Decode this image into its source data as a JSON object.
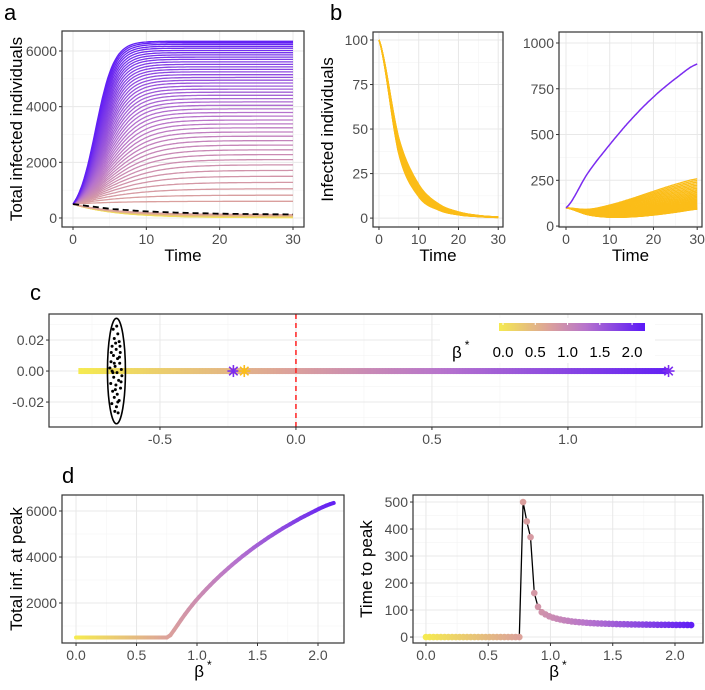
{
  "panel_labels": {
    "a": "a",
    "b": "b",
    "c": "c",
    "d": "d"
  },
  "colors": {
    "beta_scale": [
      [
        "0",
        "#f5ea50"
      ],
      [
        "0.75",
        "#dca29a"
      ],
      [
        "1.3",
        "#b774cc"
      ],
      [
        "2.2",
        "#5a18f8"
      ]
    ],
    "orange": "#fbbd18",
    "purple": "#7b2cf0",
    "dashed": "#000000",
    "vline": "#ff2020"
  },
  "beta_star": [
    0,
    0.03,
    0.06,
    0.09,
    0.12,
    0.15,
    0.18,
    0.21,
    0.24,
    0.27,
    0.3,
    0.33,
    0.36,
    0.39,
    0.42,
    0.45,
    0.48,
    0.51,
    0.54,
    0.57,
    0.6,
    0.63,
    0.66,
    0.69,
    0.72,
    0.75,
    0.78,
    0.81,
    0.84,
    0.87,
    0.9,
    0.93,
    0.96,
    0.99,
    1.02,
    1.05,
    1.08,
    1.11,
    1.14,
    1.17,
    1.2,
    1.23,
    1.26,
    1.29,
    1.32,
    1.35,
    1.38,
    1.41,
    1.44,
    1.47,
    1.5,
    1.53,
    1.56,
    1.59,
    1.62,
    1.65,
    1.68,
    1.71,
    1.74,
    1.77,
    1.8,
    1.83,
    1.86,
    1.89,
    1.92,
    1.95,
    1.98,
    2.01,
    2.04,
    2.07,
    2.1,
    2.13
  ],
  "chart_data": [
    {
      "id": "a",
      "type": "line",
      "xlabel": "Time",
      "ylabel": "Total infected individuals",
      "xlim": [
        -1.5,
        31.5
      ],
      "ylim": [
        -324,
        6719
      ],
      "xticks": [
        0,
        10,
        20,
        30
      ],
      "xtick_labels": [
        "0",
        "10",
        "20",
        "30"
      ],
      "yticks": [
        0,
        2000,
        4000,
        6000
      ],
      "ytick_labels": [
        "0",
        "2000",
        "4000",
        "6000"
      ],
      "initial_value": 500,
      "series_note": "one curve per beta_star, plateau = Total inf. at peak (panel d)",
      "dashed_curve": {
        "t": [
          0,
          5,
          10,
          15,
          20,
          25,
          30
        ],
        "values": [
          500,
          330,
          235,
          185,
          155,
          138,
          128
        ]
      }
    },
    {
      "id": "b-left",
      "type": "line",
      "xlabel": "Time",
      "ylabel": "Infected individuals",
      "xlim": [
        -1.5,
        31.2
      ],
      "ylim": [
        -5,
        104.5
      ],
      "xticks": [
        0,
        10,
        20,
        30
      ],
      "xtick_labels": [
        "0",
        "10",
        "20",
        "30"
      ],
      "yticks": [
        0,
        25,
        50,
        75,
        100
      ],
      "ytick_labels": [
        "0",
        "25",
        "50",
        "75",
        "100"
      ],
      "t": [
        0,
        5,
        10,
        15,
        20,
        25,
        30
      ],
      "band_upper": [
        100,
        45,
        19,
        8,
        3.5,
        1.5,
        0.7
      ],
      "band_lower": [
        100,
        36,
        12,
        4.5,
        1.8,
        0.8,
        0.3
      ],
      "n_curves": 30
    },
    {
      "id": "b-right",
      "type": "line",
      "xlabel": "Time",
      "xlim": [
        -1.6,
        31.1
      ],
      "ylim": [
        -5,
        1060
      ],
      "xticks": [
        0,
        10,
        20,
        30
      ],
      "xtick_labels": [
        "0",
        "10",
        "20",
        "30"
      ],
      "yticks": [
        0,
        250,
        500,
        750,
        1000
      ],
      "ytick_labels": [
        "0",
        "250",
        "500",
        "750",
        "1000"
      ],
      "t": [
        0,
        5,
        10,
        15,
        20,
        25,
        30
      ],
      "purple_curve": [
        100,
        290,
        445,
        585,
        705,
        805,
        885
      ],
      "band_upper": [
        100,
        92,
        115,
        150,
        190,
        228,
        258
      ],
      "band_lower": [
        100,
        62,
        48,
        50,
        60,
        75,
        92
      ],
      "n_curves": 30
    },
    {
      "id": "c",
      "type": "scatter",
      "xlim": [
        -0.908,
        1.493
      ],
      "ylim": [
        -0.0361,
        0.0368
      ],
      "xticks": [
        -0.5,
        0,
        0.5,
        1.0
      ],
      "xtick_labels": [
        "-0.5",
        "0.0",
        "0.5",
        "1.0"
      ],
      "yticks": [
        -0.02,
        0,
        0.02
      ],
      "ytick_labels": [
        "-0.02",
        "0.00",
        "0.02"
      ],
      "line_x_range": [
        -0.8,
        1.37
      ],
      "vline_x": 0,
      "ellipse": {
        "cx": -0.66,
        "cy": 0,
        "rx": 0.033,
        "ry": 0.034
      },
      "stars": [
        {
          "x": -0.23,
          "y": 0,
          "color": "purple"
        },
        {
          "x": -0.19,
          "y": 0,
          "color": "orange"
        },
        {
          "x": 1.37,
          "y": 0,
          "color": "purple"
        }
      ],
      "points": [
        [
          -0.672,
          0.027
        ],
        [
          -0.655,
          0.024
        ],
        [
          -0.668,
          0.021
        ],
        [
          -0.65,
          0.019
        ],
        [
          -0.676,
          0.016
        ],
        [
          -0.661,
          0.014
        ],
        [
          -0.646,
          0.012
        ],
        [
          -0.671,
          0.01
        ],
        [
          -0.656,
          0.008
        ],
        [
          -0.68,
          0.006
        ],
        [
          -0.648,
          0.005
        ],
        [
          -0.665,
          0.003
        ],
        [
          -0.642,
          0.001
        ],
        [
          -0.676,
          0.0
        ],
        [
          -0.658,
          -0.001
        ],
        [
          -0.64,
          -0.003
        ],
        [
          -0.67,
          -0.004
        ],
        [
          -0.652,
          -0.006
        ],
        [
          -0.681,
          -0.008
        ],
        [
          -0.662,
          -0.009
        ],
        [
          -0.645,
          -0.011
        ],
        [
          -0.674,
          -0.013
        ],
        [
          -0.657,
          -0.015
        ],
        [
          -0.668,
          -0.017
        ],
        [
          -0.65,
          -0.019
        ],
        [
          -0.677,
          -0.021
        ],
        [
          -0.66,
          -0.023
        ],
        [
          -0.666,
          -0.026
        ],
        [
          -0.654,
          -0.027
        ],
        [
          -0.663,
          0.018
        ],
        [
          -0.673,
          -0.001
        ],
        [
          -0.649,
          0.009
        ],
        [
          -0.684,
          0.002
        ],
        [
          -0.643,
          -0.007
        ],
        [
          -0.659,
          0.029
        ],
        [
          -0.668,
          0.005
        ],
        [
          -0.655,
          -0.02
        ],
        [
          -0.679,
          0.012
        ],
        [
          -0.647,
          0.016
        ],
        [
          -0.664,
          -0.012
        ]
      ],
      "legend": {
        "title": "β",
        "title_sup": "*",
        "position": "top-right",
        "range": [
          0,
          2.2
        ],
        "ticks": [
          0,
          0.5,
          1.0,
          1.5,
          2.0
        ],
        "tick_labels": [
          "0.0",
          "0.5",
          "1.0",
          "1.5",
          "2.0"
        ]
      }
    },
    {
      "id": "d-left",
      "type": "line",
      "xlabel": "β",
      "xlabel_sup": "*",
      "ylabel": "Total inf. at peak",
      "xlim": [
        -0.116,
        2.215
      ],
      "ylim": [
        261,
        6696
      ],
      "xticks": [
        0,
        0.5,
        1.0,
        1.5,
        2.0
      ],
      "xtick_labels": [
        "0.0",
        "0.5",
        "1.0",
        "1.5",
        "2.0"
      ],
      "yticks": [
        2000,
        4000,
        6000
      ],
      "ytick_labels": [
        "2000",
        "4000",
        "6000"
      ],
      "values": [
        500,
        500,
        500,
        500,
        500,
        500,
        500,
        500,
        500,
        500,
        500,
        500,
        500,
        500,
        500,
        500,
        500,
        500,
        500,
        500,
        500,
        500,
        500,
        500,
        500,
        500,
        600,
        820,
        1050,
        1280,
        1500,
        1710,
        1910,
        2100,
        2280,
        2450,
        2620,
        2780,
        2940,
        3090,
        3240,
        3380,
        3520,
        3660,
        3790,
        3920,
        4050,
        4170,
        4290,
        4410,
        4520,
        4630,
        4740,
        4850,
        4950,
        5050,
        5150,
        5250,
        5340,
        5430,
        5520,
        5610,
        5700,
        5780,
        5860,
        5940,
        6020,
        6100,
        6170,
        6240,
        6300,
        6350
      ]
    },
    {
      "id": "d-right",
      "type": "line+scatter",
      "xlabel": "β",
      "xlabel_sup": "*",
      "ylabel": "Time to peak",
      "xlim": [
        -0.104,
        2.225
      ],
      "ylim": [
        -22,
        526
      ],
      "xticks": [
        0,
        0.5,
        1.0,
        1.5,
        2.0
      ],
      "xtick_labels": [
        "0.0",
        "0.5",
        "1.0",
        "1.5",
        "2.0"
      ],
      "yticks": [
        0,
        100,
        200,
        300,
        400,
        500
      ],
      "ytick_labels": [
        "0",
        "100",
        "200",
        "300",
        "400",
        "500"
      ],
      "values": [
        0,
        0,
        0,
        0,
        0,
        0,
        0,
        0,
        0,
        0,
        0,
        0,
        0,
        0,
        0,
        0,
        0,
        0,
        0,
        0,
        0,
        0,
        0,
        0,
        0,
        0,
        500,
        428,
        370,
        163,
        112,
        92,
        84,
        77,
        72,
        68,
        65,
        62,
        60,
        58,
        56.5,
        55,
        54,
        53,
        52,
        51.2,
        50.5,
        50,
        49.5,
        49,
        48.6,
        48.2,
        47.8,
        47.5,
        47.2,
        46.9,
        46.7,
        46.5,
        46.3,
        46.1,
        45.9,
        45.7,
        45.5,
        45.4,
        45.3,
        45.2,
        45.1,
        45,
        44.9,
        44.8,
        44.7,
        44.6
      ]
    }
  ]
}
